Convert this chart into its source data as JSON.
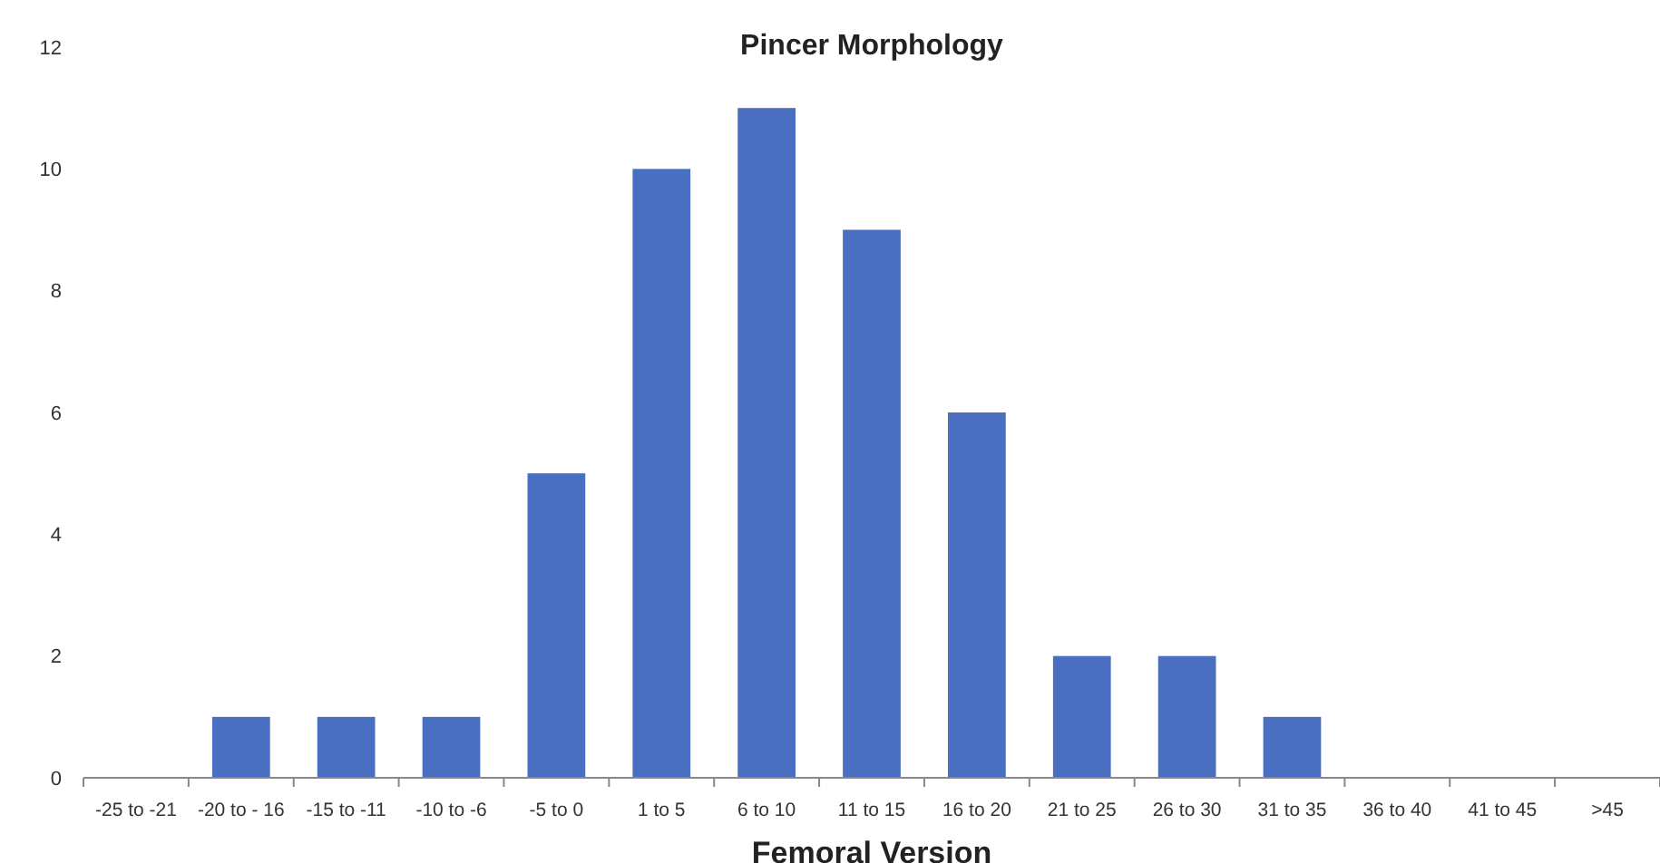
{
  "chart_data": {
    "type": "bar",
    "title": "Pincer Morphology",
    "xlabel": "Femoral Version",
    "categories": [
      "-25 to -21",
      "-20 to - 16",
      "-15 to -11",
      "-10 to -6",
      "-5 to 0",
      "1 to 5",
      "6 to 10",
      "11 to 15",
      "16 to 20",
      "21 to 25",
      "26 to 30",
      "31 to 35",
      "36 to 40",
      "41 to 45",
      ">45"
    ],
    "values": [
      0,
      1,
      1,
      1,
      5,
      10,
      11,
      9,
      6,
      2,
      2,
      1,
      0,
      0,
      0
    ],
    "color": "#4a6fc0",
    "ylim": [
      0,
      12
    ],
    "yticks": [
      0,
      2,
      4,
      6,
      8,
      10,
      12
    ],
    "grid": false
  }
}
